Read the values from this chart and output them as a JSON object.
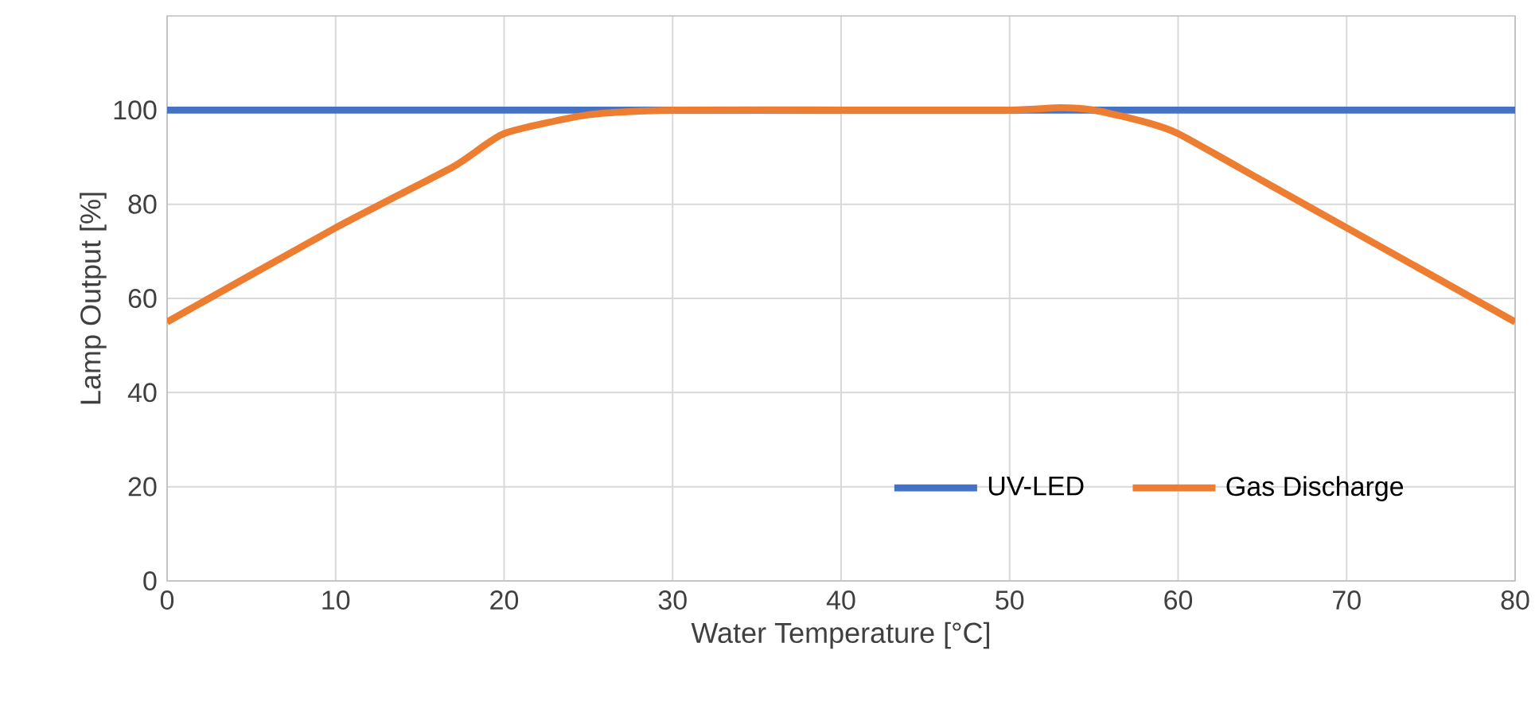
{
  "chart_data": {
    "type": "line",
    "xlabel": "Water Temperature [°C]",
    "ylabel": "Lamp Output [%]",
    "xlim": [
      0,
      80
    ],
    "ylim": [
      0,
      120
    ],
    "xticks": [
      0,
      10,
      20,
      30,
      40,
      50,
      60,
      70,
      80
    ],
    "yticks": [
      0,
      20,
      40,
      60,
      80,
      100
    ],
    "grid": true,
    "legend": "bottom right",
    "marker": "none",
    "line_style": "solid",
    "series": [
      {
        "name": "UV-LED",
        "color": "#4472c4",
        "x": [
          0,
          80
        ],
        "values": [
          100,
          100
        ]
      },
      {
        "name": "Gas Discharge",
        "color": "#ed7d31",
        "x": [
          0,
          10,
          17,
          20,
          25,
          30,
          40,
          50,
          53,
          55,
          58,
          60,
          65,
          70,
          80
        ],
        "values": [
          55,
          75,
          88,
          95,
          99,
          100,
          100,
          100,
          100.5,
          100,
          97.5,
          95,
          85,
          75,
          55
        ]
      }
    ]
  }
}
